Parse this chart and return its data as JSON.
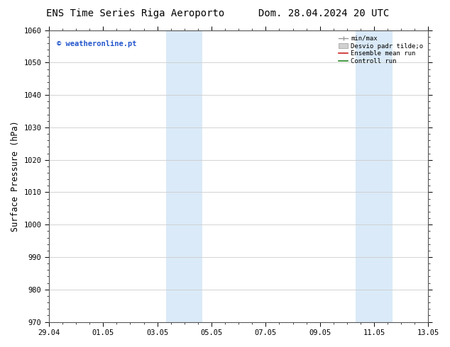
{
  "title_left": "ENS Time Series Riga Aeroporto",
  "title_right": "Dom. 28.04.2024 20 UTC",
  "ylabel": "Surface Pressure (hPa)",
  "ylim": [
    970,
    1060
  ],
  "yticks": [
    970,
    980,
    990,
    1000,
    1010,
    1020,
    1030,
    1040,
    1050,
    1060
  ],
  "xtick_labels": [
    "29.04",
    "01.05",
    "03.05",
    "05.05",
    "07.05",
    "09.05",
    "11.05",
    "13.05"
  ],
  "xtick_positions": [
    0,
    2,
    4,
    6,
    8,
    10,
    12,
    14
  ],
  "shaded_regions": [
    {
      "x_start": 4.33,
      "x_end": 5.67
    },
    {
      "x_start": 11.33,
      "x_end": 12.67
    }
  ],
  "shaded_color": "#daeaf8",
  "watermark_text": "© weatheronline.pt",
  "watermark_color": "#2255cc",
  "bg_color": "#ffffff",
  "plot_bg_color": "#ffffff",
  "grid_color": "#cccccc",
  "title_fontsize": 10,
  "tick_fontsize": 7.5,
  "label_fontsize": 8.5
}
